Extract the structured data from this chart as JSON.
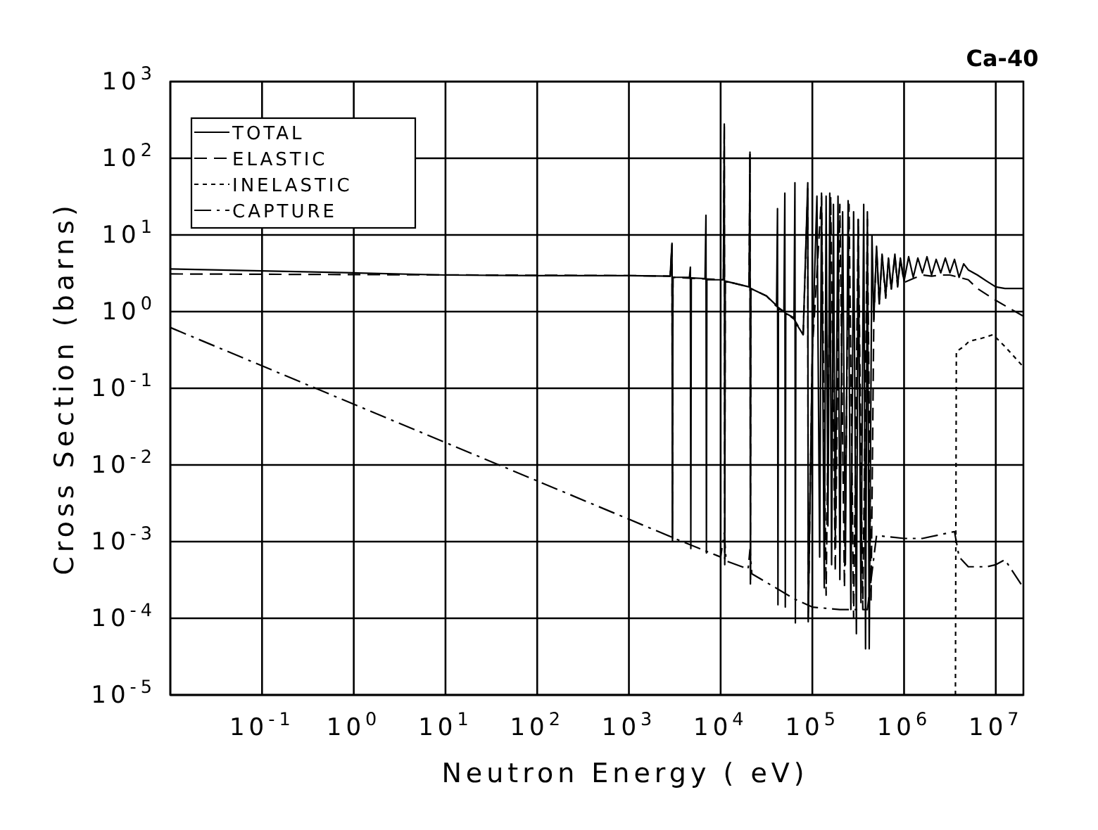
{
  "chart_data": {
    "type": "line",
    "title": "Ca-40",
    "xlabel": "Neutron Energy ( eV)",
    "ylabel": "Cross Section (barns)",
    "log": "xy",
    "grid": true,
    "legend": "top left",
    "xlim": [
      0.01,
      20000000
    ],
    "ylim": [
      1e-05,
      1000
    ],
    "xticks": [
      {
        "value": 0.1,
        "label": "10$^{-1}$"
      },
      {
        "value": 1,
        "label": "10$^{0}$"
      },
      {
        "value": 10,
        "label": "10$^{1}$"
      },
      {
        "value": 100,
        "label": "10$^{2}$"
      },
      {
        "value": 1000,
        "label": "10$^{3}$"
      },
      {
        "value": 10000,
        "label": "10$^{4}$"
      },
      {
        "value": 100000,
        "label": "10$^{5}$"
      },
      {
        "value": 1000000,
        "label": "10$^{6}$"
      },
      {
        "value": 10000000,
        "label": "10$^{7}$"
      }
    ],
    "yticks": [
      {
        "value": 1e-05,
        "label": "10$^{-5}$"
      },
      {
        "value": 0.0001,
        "label": "10$^{-4}$"
      },
      {
        "value": 0.001,
        "label": "10$^{-3}$"
      },
      {
        "value": 0.01,
        "label": "10$^{-2}$"
      },
      {
        "value": 0.1,
        "label": "10$^{-1}$"
      },
      {
        "value": 1,
        "label": "10$^{0}$"
      },
      {
        "value": 10,
        "label": "10$^{1}$"
      },
      {
        "value": 100,
        "label": "10$^{2}$"
      },
      {
        "value": 1000,
        "label": "10$^{3}$"
      }
    ],
    "series": [
      {
        "name": "TOTAL",
        "color": "#000000",
        "line_style": "solid",
        "x": [
          0.01,
          0.1,
          1,
          10,
          100,
          1000,
          2818,
          2950,
          2985,
          3020,
          4571,
          4677,
          4732,
          4786,
          6761,
          6918,
          6998,
          7079,
          10720,
          10960,
          11090,
          11220,
          20420,
          20890,
          21130,
          21380,
          31620,
          40740,
          41690,
          42170,
          42660,
          48980,
          50120,
          50700,
          51290,
          63100,
          64570,
          65310,
          66070,
          79430,
          89130,
          90160,
          100000,
          112200,
          120200,
          125900,
          134900,
          141300,
          147900,
          154900,
          162200,
          169800,
          177800,
          190500,
          199500,
          213800,
          229100,
          245500,
          263000,
          281800,
          302000,
          316200,
          338800,
          363100,
          380200,
          398100,
          416900,
          446700,
          467700,
          501200,
          537000,
          575400,
          631000,
          676100,
          724400,
          794300,
          851100,
          912000,
          1000000,
          1122000,
          1259000,
          1413000,
          1585000,
          1778000,
          1995000,
          2239000,
          2512000,
          2818000,
          3162000,
          3548000,
          3981000,
          4467000,
          5012000,
          6310000,
          7943000,
          10000000,
          12590000,
          20000000
        ],
        "values": [
          3.6,
          3.4,
          3.2,
          3.0,
          2.95,
          2.95,
          2.9,
          7.8,
          0.0011,
          2.8,
          2.8,
          3.8,
          0.00081,
          2.75,
          2.7,
          18,
          0.00071,
          2.6,
          2.6,
          280,
          0.0006,
          2.5,
          2.1,
          120,
          0.00032,
          2.0,
          1.6,
          1.2,
          22,
          0.00015,
          1.1,
          1.0,
          35,
          0.00014,
          0.95,
          0.83,
          48,
          8.7e-05,
          0.71,
          0.5,
          48,
          0.0001,
          0.32,
          32,
          0.00063,
          35,
          0.00025,
          32,
          0.0016,
          35,
          0.0005,
          25,
          0.001,
          32,
          0.00032,
          20,
          0.0005,
          28,
          0.00013,
          20,
          6.3e-05,
          16,
          0.00016,
          25,
          4e-05,
          20,
          4e-05,
          10,
          0.79,
          7.1,
          1.26,
          5.6,
          1.6,
          5.0,
          2.0,
          5.6,
          2.2,
          5.0,
          2.5,
          5.2,
          2.8,
          5.0,
          3.2,
          5.2,
          3.0,
          4.8,
          3.2,
          5.0,
          3.2,
          4.8,
          2.8,
          4.2,
          3.5,
          3.0,
          2.5,
          2.1,
          2.0,
          2.0
        ]
      },
      {
        "name": "ELASTIC",
        "color": "#000000",
        "line_style": "dashed",
        "x": [
          0.01,
          1000,
          2818,
          2950,
          2985,
          3020,
          10720,
          10960,
          11090,
          11220,
          20420,
          20890,
          21130,
          21380,
          31620,
          39810,
          63100,
          79430,
          89130,
          90160,
          100000,
          125900,
          141300,
          158500,
          177800,
          199500,
          223900,
          251200,
          281800,
          316200,
          354800,
          398100,
          436500,
          467700,
          501200,
          537000,
          575400,
          631000,
          676100,
          724400,
          794300,
          851100,
          912000,
          1000000,
          1259000,
          1585000,
          1995000,
          2512000,
          3162000,
          3981000,
          5012000,
          6310000,
          10000000,
          20000000
        ],
        "values": [
          3.1,
          2.95,
          2.9,
          7.6,
          0.001,
          2.8,
          2.6,
          270,
          0.0005,
          2.5,
          2.1,
          115,
          0.00028,
          2.0,
          1.6,
          1.2,
          0.8,
          0.5,
          40,
          9e-05,
          0.32,
          32,
          0.0002,
          32,
          0.0004,
          25,
          0.00025,
          25,
          0.0001,
          16,
          0.00013,
          16,
          0.00016,
          0.76,
          6.8,
          1.2,
          5.4,
          1.5,
          4.8,
          1.9,
          5.4,
          2.1,
          4.8,
          2.4,
          2.7,
          3.0,
          2.9,
          3.0,
          3.0,
          2.8,
          2.6,
          2.0,
          1.4,
          0.87
        ]
      },
      {
        "name": "INELASTIC",
        "color": "#000000",
        "line_style": "dotted",
        "x": [
          3631000,
          3715000,
          4467000,
          5129000,
          7079000,
          9333000,
          12590000,
          20000000
        ],
        "values": [
          1e-05,
          0.3,
          0.35,
          0.41,
          0.45,
          0.5,
          0.35,
          0.19
        ]
      },
      {
        "name": "CAPTURE",
        "color": "#000000",
        "line_style": "dashdot",
        "x": [
          0.01,
          3162,
          10000,
          10960,
          11480,
          19950,
          20890,
          21880,
          39810,
          63100,
          100000,
          199500,
          398100,
          501200,
          1000000,
          1585000,
          3548000,
          3981000,
          5012000,
          7943000,
          10000000,
          12590000,
          20000000
        ],
        "values": [
          0.62,
          0.0011,
          0.00063,
          0.0013,
          0.00056,
          0.00044,
          0.00079,
          0.00038,
          0.00025,
          0.00018,
          0.00014,
          0.00013,
          0.00013,
          0.0012,
          0.0011,
          0.0011,
          0.00135,
          0.00063,
          0.00047,
          0.00047,
          0.0005,
          0.00058,
          0.00025
        ]
      }
    ]
  }
}
